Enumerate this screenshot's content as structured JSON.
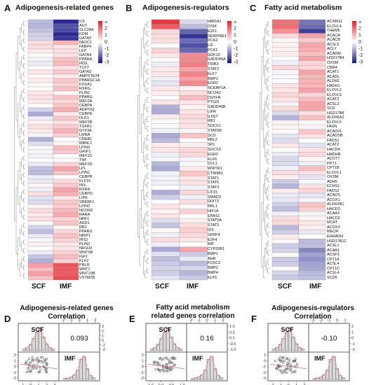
{
  "panel_a": {
    "label": "A",
    "title": "Adipogenesis-related genes",
    "col_labels": [
      "SCF",
      "IMF"
    ],
    "genes": [
      "IL6",
      "AGT",
      "SLC2A4",
      "KDM",
      "GATA2",
      "NR2C1",
      "FABP4",
      "LEP",
      "GATA4",
      "PPARA",
      "IRS1",
      "TCF7",
      "GATA3",
      "AMPSTE24",
      "PPARGC1A",
      "FOXA1",
      "RXRG",
      "PLIN1",
      "PPARG",
      "MEF2A",
      "CEBPA",
      "ADIPOQ",
      "CEBPA",
      "DLK1",
      "MEF2B",
      "TGFB1",
      "GTF3A",
      "LMNA",
      "CREB1",
      "MBNL1",
      "LPIN3",
      "GRIP1",
      "MEF2C",
      "TNF",
      "MEF2D",
      "LPL",
      "LPIN1",
      "CEBPB",
      "KLF15",
      "INS",
      "RXRA",
      "CEBPD",
      "LIPE",
      "SREBF1",
      "LPIN2",
      "NCOR2",
      "RARA",
      "NRF1",
      "ADD1",
      "RB1",
      "PPARD",
      "NRIP1",
      "IRS2",
      "PLIN2",
      "NR1H3",
      "WNT5B",
      "IGF1",
      "KLF2",
      "PRLR",
      "WNT1",
      "WNT10B",
      "VSTM2B"
    ],
    "scale": [
      "3",
      "2",
      "1",
      "0",
      "-1",
      "-2",
      "-3"
    ]
  },
  "panel_b": {
    "label": "B",
    "title": "Adipogenesis-regulators",
    "col_labels": [
      "SCF",
      "IMF"
    ],
    "genes": [
      "HMGA1",
      "OSM",
      "E2F1",
      "SERPINE1",
      "PCK2",
      "LIF",
      "PCK1",
      "GDF10",
      "GADD45A",
      "TRIB3",
      "STAT2",
      "KLF7",
      "BMP2",
      "EGR2",
      "NCKAP1A",
      "NCOA2",
      "CNTFR",
      "PTGIS",
      "GADD45B",
      "LIFR",
      "IL6ST",
      "RB1",
      "SOCS1",
      "STAT5B",
      "SCD",
      "RBL2",
      "SP1",
      "SOCS3",
      "EGR2",
      "KLF6",
      "DVL1",
      "WWTR1",
      "CTNNB1",
      "STAT1",
      "STAT6",
      "STAT3",
      "LIF15",
      "SMAD3",
      "DDIT3",
      "RBL1",
      "HIF1A",
      "EPAS1",
      "STAT5A",
      "STAT3",
      "ID3",
      "SFRP4",
      "E2F4",
      "MIF",
      "CYP26B1",
      "BMP1",
      "AHR",
      "FOXC2",
      "BMP2",
      "BMP4",
      "KLF5"
    ],
    "scale": [
      "3",
      "2",
      "1",
      "0",
      "-1",
      "-2",
      "-3"
    ]
  },
  "panel_c": {
    "label": "C",
    "title": "Fatty acid metabolism",
    "col_labels": [
      "SCF",
      "IMF"
    ],
    "genes": [
      "ACSBG1",
      "ELOVL4",
      "THEM5",
      "ACACA",
      "ACACB",
      "ACSL5",
      "ACLY",
      "ACADM",
      "HSD17B4",
      "OXSM",
      "CBR4",
      "ACAT1",
      "ACADL",
      "ALDH2",
      "HADH1",
      "ELOVL2",
      "ELOVL6",
      "ACAT2",
      "ACSL3",
      "SCD",
      "HSD17B8",
      "ALDH6A2",
      "ELOVL5",
      "FASN",
      "ACADVL",
      "ACADSB",
      "FADS1",
      "ACAT2",
      "HACD4",
      "HADHB",
      "ACOT7",
      "PPT1",
      "CPT1B",
      "ELOVL1",
      "OXSM",
      "ADH5",
      "ECHS1",
      "FADS2",
      "ACADS",
      "ACOX1",
      "ALDH1B1",
      "HACD3",
      "ACAA2",
      "HACD2",
      "MCAT",
      "ACOX3",
      "MECR",
      "EHHADH",
      "HSD17B12",
      "ACSL1",
      "ACAA1",
      "ACSF3",
      "CPT1A",
      "ACSL4",
      "CPT1C",
      "ACSL4",
      "SCD5"
    ],
    "scale": [
      "3",
      "2",
      "1",
      "0",
      "-1",
      "-2",
      "-3"
    ]
  },
  "panel_d": {
    "label": "D",
    "title_line1": "Adipogenesis-related genes",
    "title_line2": "Correlation",
    "var1": "SCF",
    "var2": "IMF",
    "r": "0.093",
    "top_ticks": [
      "-2",
      "-1",
      "0",
      "1",
      "2"
    ],
    "bottom_ticks": [
      "-1",
      "0",
      "1",
      "2",
      "3"
    ],
    "left_ticks": [
      "2",
      "1",
      "0",
      "-1",
      "-2"
    ],
    "right_ticks": [
      "3",
      "2",
      "1",
      "0",
      "-1",
      "-2"
    ]
  },
  "panel_e": {
    "label": "E",
    "title_line1": "Fatty acid metabolism",
    "title_line2": "related genes correlation",
    "var1": "SCF",
    "var2": "IMF",
    "r": "0.16",
    "top_ticks": [
      "-2",
      "-1",
      "0",
      "1",
      "2"
    ],
    "bottom_ticks": [
      "-1.0",
      "0.0",
      "0.5",
      "1.0"
    ],
    "left_ticks": [
      "2",
      "1",
      "0",
      "-1",
      "-2"
    ],
    "right_ticks": [
      "1.0",
      "0.5",
      "0.0",
      "-0.5",
      "-1.0"
    ]
  },
  "panel_f": {
    "label": "F",
    "title_line1": "Adipogenesis-regulators",
    "title_line2": "Correlation",
    "var1": "SCF",
    "var2": "IMF",
    "r": "-0.10",
    "top_ticks": [
      "-3",
      "-2",
      "-1",
      "0",
      "1"
    ],
    "bottom_ticks": [
      "-2",
      "-1",
      "0",
      "1",
      "2"
    ],
    "left_ticks": [
      "1",
      "0",
      "-1",
      "-2",
      "-3"
    ],
    "right_ticks": [
      "2",
      "1",
      "0",
      "-1",
      "-2"
    ]
  },
  "colors": {
    "red": "#e8202a",
    "white": "#ffffff",
    "blue": "#1a1a8c"
  }
}
